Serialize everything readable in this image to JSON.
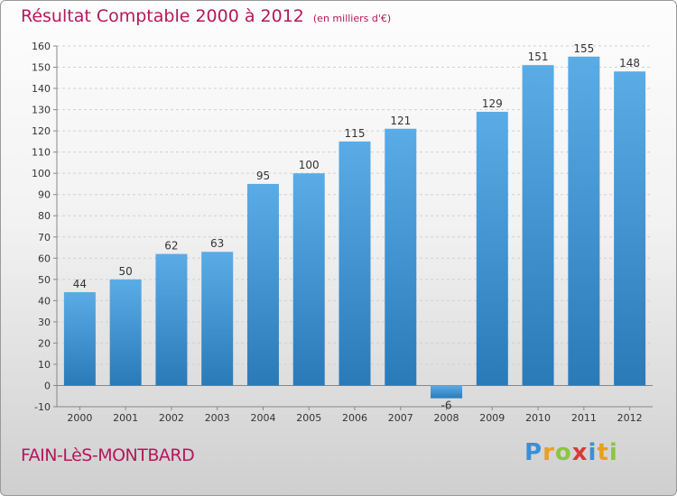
{
  "header": {
    "title": "Résultat Comptable 2000 à 2012",
    "unit": "(en milliers d'€)"
  },
  "footer": {
    "commune": "FAIN-LèS-MONTBARD",
    "brand_letters": [
      "P",
      "r",
      "o",
      "x",
      "i",
      "t",
      "i"
    ],
    "brand_colors": [
      "#3a8fd8",
      "#e8a020",
      "#8cc63f",
      "#d83a3a",
      "#3a8fd8",
      "#e8a020",
      "#8cc63f"
    ]
  },
  "colors": {
    "accent": "#b5175c",
    "bar_light": "#5aace6",
    "bar_dark": "#2a7ab8",
    "grid": "#d0d0d0",
    "text": "#333333"
  },
  "chart_data": {
    "type": "bar",
    "title": "Résultat Comptable 2000 à 2012",
    "subtitle": "(en milliers d'€)",
    "categories": [
      "2000",
      "2001",
      "2002",
      "2003",
      "2004",
      "2005",
      "2006",
      "2007",
      "2008",
      "2009",
      "2010",
      "2011",
      "2012"
    ],
    "values": [
      44,
      50,
      62,
      63,
      95,
      100,
      115,
      121,
      -6,
      129,
      151,
      155,
      148
    ],
    "ylim": [
      -10,
      160
    ],
    "yticks": [
      -10,
      0,
      10,
      20,
      30,
      40,
      50,
      60,
      70,
      80,
      90,
      100,
      110,
      120,
      130,
      140,
      150,
      160
    ],
    "xlabel": "",
    "ylabel": "",
    "grid": true,
    "legend": "none"
  }
}
